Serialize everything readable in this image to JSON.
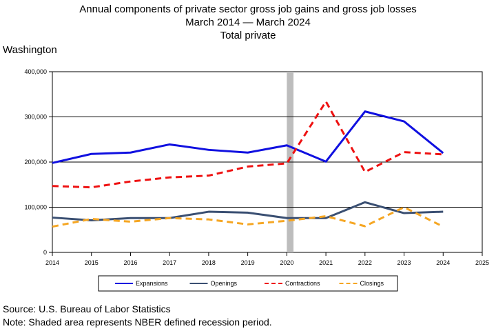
{
  "title": {
    "line1": "Annual components of private sector gross job gains and gross job losses",
    "line2": "March 2014 — March 2024",
    "line3": "Total private"
  },
  "region": "Washington",
  "footer": {
    "source": "Source: U.S. Bureau of Labor Statistics",
    "note": "Note: Shaded area represents NBER defined recession period."
  },
  "chart_data": {
    "type": "line",
    "x": [
      2014,
      2015,
      2016,
      2017,
      2018,
      2019,
      2020,
      2021,
      2022,
      2023,
      2024
    ],
    "xticks": [
      "2014",
      "2015",
      "2016",
      "2017",
      "2018",
      "2019",
      "2020",
      "2021",
      "2022",
      "2023",
      "2024",
      "2025"
    ],
    "xlim": [
      2014,
      2025
    ],
    "ylim": [
      0,
      400000
    ],
    "yticks": [
      {
        "value": 0,
        "label": "0"
      },
      {
        "value": 100000,
        "label": "100,000"
      },
      {
        "value": 200000,
        "label": "200,000"
      },
      {
        "value": 300000,
        "label": "300,000"
      },
      {
        "value": 400000,
        "label": "400,000"
      }
    ],
    "recession": [
      2020,
      2020.17
    ],
    "grid": true,
    "legend_position": "bottom",
    "series": [
      {
        "name": "Expansions",
        "color": "#1010e0",
        "dash": "solid",
        "values": [
          198000,
          218000,
          221000,
          239000,
          227000,
          221000,
          237000,
          201000,
          312000,
          290000,
          220000
        ]
      },
      {
        "name": "Openings",
        "color": "#3a4f72",
        "dash": "solid",
        "values": [
          77000,
          71000,
          76000,
          76000,
          90000,
          88000,
          76000,
          76000,
          111000,
          87000,
          90000
        ]
      },
      {
        "name": "Contractions",
        "color": "#ee1111",
        "dash": "dashed",
        "values": [
          147000,
          144000,
          157000,
          166000,
          170000,
          190000,
          197000,
          334000,
          178000,
          222000,
          217000
        ]
      },
      {
        "name": "Closings",
        "color": "#f5a623",
        "dash": "dashed",
        "values": [
          57000,
          74000,
          68000,
          76000,
          73000,
          62000,
          70000,
          80000,
          58000,
          100000,
          57000
        ]
      }
    ]
  }
}
